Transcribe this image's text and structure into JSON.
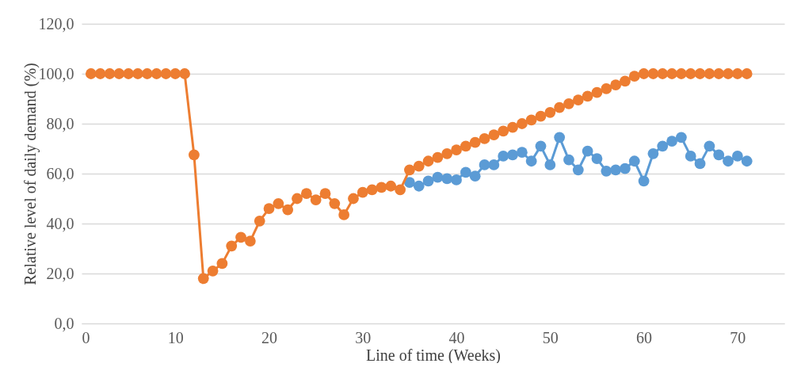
{
  "chart_data": {
    "type": "line",
    "xlabel": "Line of time (Weeks)",
    "ylabel": "Relative level of daily demand (%)",
    "xlim": [
      0,
      75
    ],
    "xticks": [
      0,
      10,
      20,
      30,
      40,
      50,
      60,
      70
    ],
    "ylim": [
      0,
      120
    ],
    "yticks": [
      {
        "value": 0,
        "label": "0,0"
      },
      {
        "value": 20,
        "label": "20,0"
      },
      {
        "value": 40,
        "label": "40,0"
      },
      {
        "value": 60,
        "label": "60,0"
      },
      {
        "value": 80,
        "label": "80,0"
      },
      {
        "value": 100,
        "label": "100,0"
      },
      {
        "value": 120,
        "label": "120,0"
      }
    ],
    "grid": "y",
    "marker": "circle",
    "line_style": "solid",
    "series": [
      {
        "color": "#5b9bd5",
        "x": [
          35,
          36,
          37,
          38,
          39,
          40,
          41,
          42,
          43,
          44,
          45,
          46,
          47,
          48,
          49,
          50,
          51,
          52,
          53,
          54,
          55,
          56,
          57,
          58,
          59,
          60,
          61,
          62,
          63,
          64,
          65,
          66,
          67,
          68,
          69,
          70,
          71
        ],
        "values": [
          56.5,
          55,
          57,
          58.5,
          58,
          57.5,
          60.5,
          59,
          63.5,
          63.5,
          67,
          67.5,
          68.5,
          65,
          71,
          63.5,
          74.5,
          65.5,
          61.5,
          69,
          66,
          61,
          61.5,
          62,
          65,
          57,
          68,
          71,
          73,
          74.5,
          67,
          64,
          71,
          67.5,
          65,
          67,
          65
        ]
      },
      {
        "color": "#ed7d31",
        "x": [
          1,
          2,
          3,
          4,
          5,
          6,
          7,
          8,
          9,
          10,
          11,
          12,
          13,
          14,
          15,
          16,
          17,
          18,
          19,
          20,
          21,
          22,
          23,
          24,
          25,
          26,
          27,
          28,
          29,
          30,
          31,
          32,
          33,
          34,
          35,
          36,
          37,
          38,
          39,
          40,
          41,
          42,
          43,
          44,
          45,
          46,
          47,
          48,
          49,
          50,
          51,
          52,
          53,
          54,
          55,
          56,
          57,
          58,
          59,
          60,
          61,
          62,
          63,
          64,
          65,
          66,
          67,
          68,
          69,
          70,
          71
        ],
        "values": [
          100,
          100,
          100,
          100,
          100,
          100,
          100,
          100,
          100,
          100,
          100,
          67.5,
          18,
          21,
          24,
          31,
          34.5,
          33,
          41,
          46,
          48,
          45.5,
          50,
          52,
          49.5,
          52,
          48,
          43.5,
          50,
          52.5,
          53.5,
          54.5,
          55,
          53.5,
          61.5,
          63,
          65,
          66.5,
          68,
          69.5,
          71,
          72.5,
          74,
          75.5,
          77,
          78.5,
          80,
          81.5,
          83,
          84.5,
          86.5,
          88,
          89.5,
          91,
          92.5,
          94,
          95.5,
          97,
          99,
          100,
          100,
          100,
          100,
          100,
          100,
          100,
          100,
          100,
          100,
          100,
          100
        ]
      }
    ]
  }
}
